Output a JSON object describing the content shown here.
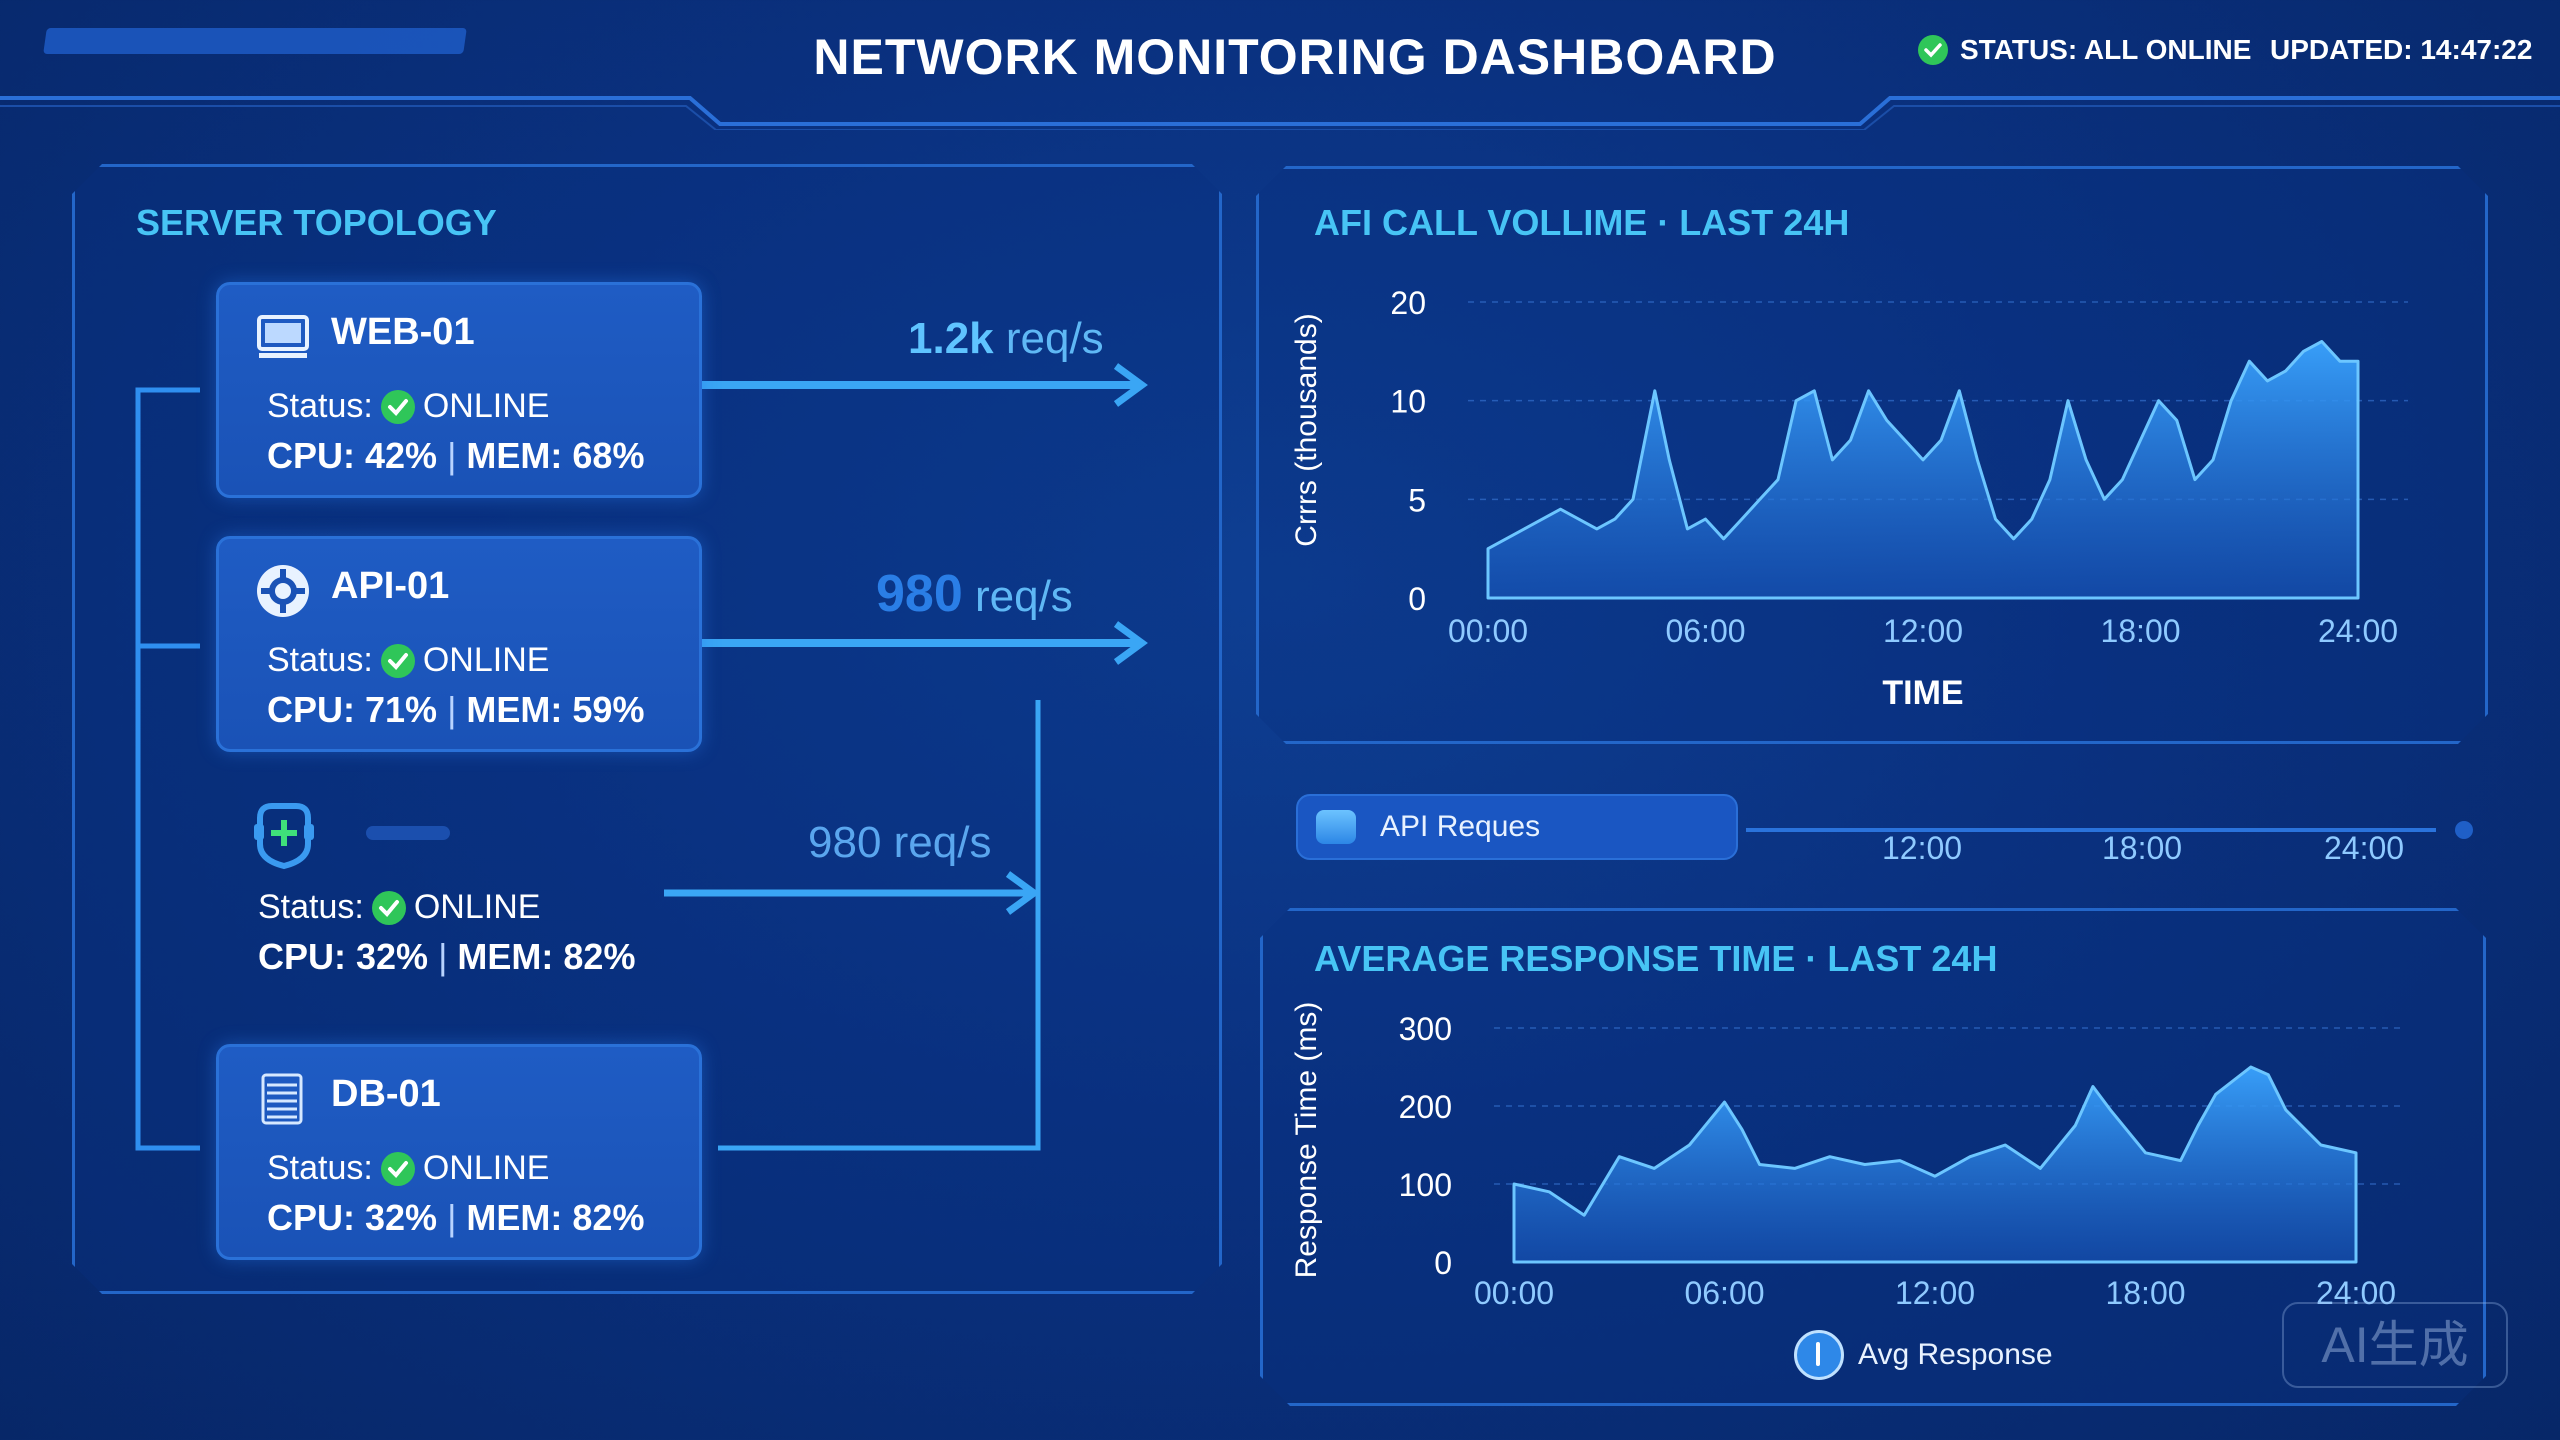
{
  "header": {
    "title": "NETWORK MONITORING DASHBOARD",
    "status": "STATUS: ALL ONLINE",
    "updated": "UPDATED: 14:47:22"
  },
  "topology": {
    "title": "SERVER TOPOLOGY",
    "status_label": "Status:",
    "nodes": [
      {
        "name": "WEB-01",
        "icon": "monitor-icon",
        "status": "ONLINE",
        "cpu": "CPU: 42%",
        "mem": "MEM: 68%",
        "rate_num": "1.2k",
        "rate_unit": " req/s"
      },
      {
        "name": "API-01",
        "icon": "gear-icon",
        "status": "ONLINE",
        "cpu": "CPU: 71%",
        "mem": "MEM: 59%",
        "rate_num": "980",
        "rate_unit": " req/s"
      },
      {
        "name": "",
        "icon": "shield-gear-icon",
        "status": "ONLINE",
        "cpu": "CPU: 32%",
        "mem": "MEM: 82%",
        "rate_num": "",
        "rate_unit": "980 req/s"
      },
      {
        "name": "DB-01",
        "icon": "database-icon",
        "status": "ONLINE",
        "cpu": "CPU: 32%",
        "mem": "MEM: 82%"
      }
    ]
  },
  "volume_chart": {
    "title": "AFI CALL VOLLIME · LAST 24H",
    "chart_data": {
      "type": "area",
      "ylabel": "Crrrs (thousands)",
      "xlabel": "TIME",
      "yticks": [
        "0",
        "5",
        "10",
        "20"
      ],
      "xticks": [
        "00:00",
        "06:00",
        "12:00",
        "18:00",
        "24:00"
      ],
      "x": [
        0,
        1,
        2,
        3,
        3.5,
        4,
        4.6,
        5,
        5.5,
        6,
        6.5,
        7,
        7.5,
        8,
        8.5,
        9,
        9.5,
        10,
        10.5,
        11,
        11.5,
        12,
        12.5,
        13,
        13.5,
        14,
        14.5,
        15,
        15.5,
        16,
        16.5,
        17,
        17.5,
        18,
        18.5,
        19,
        19.5,
        20,
        20.5,
        21,
        21.5,
        22,
        22.5,
        23,
        23.5,
        24
      ],
      "values": [
        2.5,
        3.5,
        4.5,
        3.5,
        4,
        5,
        11,
        7,
        3.5,
        4,
        3,
        4,
        5,
        6,
        10,
        11,
        7,
        8,
        11,
        9,
        8,
        7,
        8,
        11,
        7,
        4,
        3,
        4,
        6,
        10,
        7,
        5,
        6,
        8,
        10,
        9,
        6,
        7,
        10,
        14,
        12,
        13,
        15,
        16,
        14,
        14
      ]
    }
  },
  "mid_legend": {
    "label": "API Reques",
    "xticks": [
      "12:00",
      "18:00",
      "24:00"
    ]
  },
  "response_chart": {
    "title": "AVERAGE RESPONSE TIME · LAST 24H",
    "chart_data": {
      "type": "area",
      "ylabel": "Response Time (ms)",
      "yticks": [
        "0",
        "100",
        "200",
        "300"
      ],
      "xticks": [
        "00:00",
        "06:00",
        "12:00",
        "18:00",
        "24:00"
      ],
      "series_name": "Avg Response",
      "x": [
        0,
        1,
        2,
        3,
        4,
        5,
        6,
        6.5,
        7,
        8,
        9,
        10,
        11,
        12,
        13,
        14,
        15,
        16,
        16.5,
        17,
        18,
        19,
        19.5,
        20,
        21,
        21.5,
        22,
        23,
        24
      ],
      "values": [
        100,
        90,
        60,
        135,
        120,
        150,
        205,
        170,
        125,
        120,
        135,
        125,
        130,
        110,
        135,
        150,
        120,
        175,
        225,
        195,
        140,
        130,
        175,
        215,
        250,
        240,
        195,
        150,
        140
      ]
    }
  },
  "watermark": "AI生成"
}
